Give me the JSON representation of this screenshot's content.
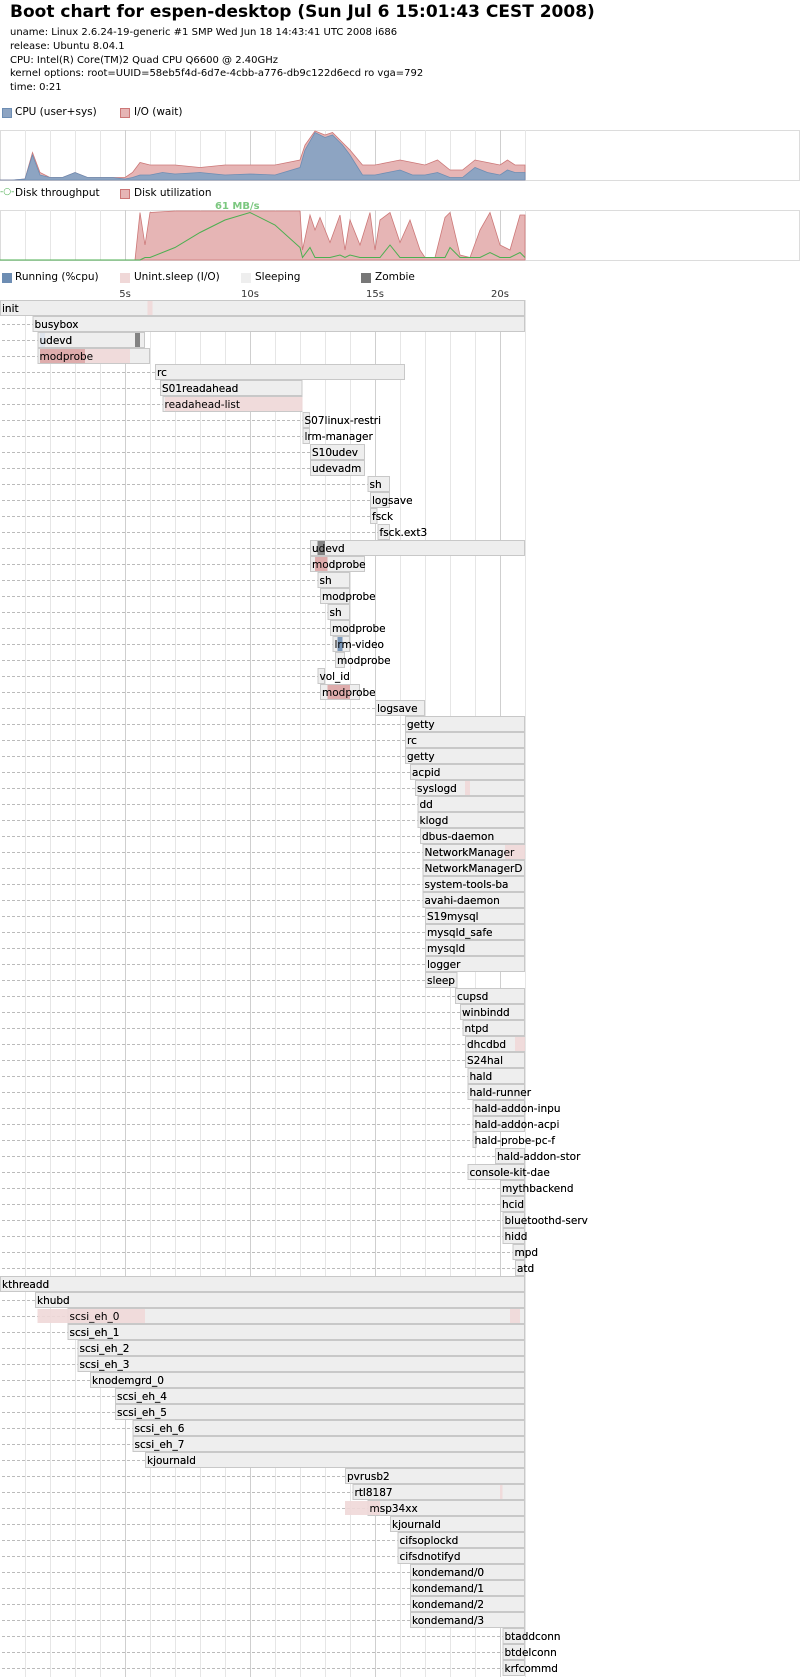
{
  "header": {
    "title": "Boot chart for espen-desktop (Sun Jul 6 15:01:43 CEST 2008)",
    "uname": "uname: Linux 2.6.24-19-generic #1 SMP Wed Jun 18 14:43:41 UTC 2008 i686",
    "release": "release: Ubuntu 8.04.1",
    "cpu": "CPU: Intel(R) Core(TM)2 Quad CPU Q6600 @ 2.40GHz",
    "kernel": "kernel options: root=UUID=58eb5f4d-6d7e-4cbb-a776-db9c122d6ecd ro vga=792",
    "time": "time: 0:21"
  },
  "legends": {
    "cpu": [
      {
        "label": "CPU (user+sys)",
        "color": "#8da4c2"
      },
      {
        "label": "I/O (wait)",
        "color": "#e6b5b5"
      }
    ],
    "disk": [
      {
        "label": "Disk throughput",
        "color": "#4caf50",
        "icon": "line-marker-icon"
      },
      {
        "label": "Disk utilization",
        "color": "#e6b5b5"
      }
    ],
    "process": [
      {
        "label": "Running (%cpu)",
        "color": "#6d8db3"
      },
      {
        "label": "Unint.sleep (I/O)",
        "color": "#f0d8d8"
      },
      {
        "label": "Sleeping",
        "color": "#eeeeee"
      },
      {
        "label": "Zombie",
        "color": "#777777"
      }
    ]
  },
  "chart_data": {
    "type": "bootchart",
    "x_unit": "s",
    "x_range": [
      0,
      21
    ],
    "time_ticks": [
      "5s",
      "10s",
      "15s",
      "20s"
    ],
    "time_tick_values": [
      5,
      10,
      15,
      20
    ],
    "cpu_chart": {
      "x": [
        0,
        0.5,
        1,
        1.3,
        1.6,
        2,
        2.5,
        3,
        3.5,
        4,
        4.5,
        5,
        5.3,
        5.6,
        6,
        6.5,
        7,
        8,
        9,
        10,
        11,
        12,
        12.2,
        12.6,
        13,
        13.3,
        13.7,
        14,
        14.5,
        15,
        15.5,
        16,
        16.5,
        17,
        17.5,
        18,
        18.5,
        19,
        19.5,
        20,
        20.3,
        20.6,
        21
      ],
      "cpu": [
        0,
        0,
        0.02,
        0.5,
        0.1,
        0.05,
        0.05,
        0.15,
        0.05,
        0.05,
        0.05,
        0.02,
        0.05,
        0.1,
        0.1,
        0.15,
        0.12,
        0.15,
        0.1,
        0.12,
        0.1,
        0.25,
        0.6,
        0.95,
        0.85,
        0.9,
        0.7,
        0.5,
        0.1,
        0.1,
        0.15,
        0.2,
        0.1,
        0.1,
        0.15,
        0.05,
        0.05,
        0.25,
        0.15,
        0.1,
        0.2,
        0.15,
        0.15
      ],
      "io": [
        0,
        0,
        0.02,
        0.55,
        0.15,
        0.05,
        0.05,
        0.15,
        0.05,
        0.05,
        0.05,
        0.05,
        0.15,
        0.35,
        0.3,
        0.3,
        0.3,
        0.25,
        0.3,
        0.3,
        0.3,
        0.4,
        0.7,
        0.98,
        0.9,
        0.95,
        0.75,
        0.6,
        0.3,
        0.3,
        0.35,
        0.4,
        0.35,
        0.3,
        0.4,
        0.2,
        0.2,
        0.4,
        0.35,
        0.3,
        0.4,
        0.3,
        0.3
      ]
    },
    "disk_chart": {
      "max_label": "61 MB/s",
      "x": [
        0,
        1.4,
        5.4,
        5.6,
        5.8,
        6,
        7,
        8,
        9,
        10,
        11,
        12,
        12.1,
        12.4,
        12.6,
        12.8,
        13.2,
        13.6,
        13.8,
        14,
        14.4,
        14.8,
        15,
        15.2,
        15.6,
        16,
        16.4,
        16.8,
        17,
        17.4,
        17.8,
        18,
        18.4,
        18.8,
        19.2,
        19.6,
        20,
        20.4,
        20.8,
        21
      ],
      "util": [
        0,
        0,
        0,
        0.95,
        0.3,
        0.95,
        0.98,
        0.98,
        0.98,
        0.98,
        0.98,
        0.98,
        0.2,
        0.9,
        0.6,
        0.85,
        0.35,
        0.9,
        0.2,
        0.8,
        0.3,
        0.95,
        0.2,
        0.8,
        0.95,
        0.35,
        0.8,
        0.2,
        0.05,
        0.05,
        0.85,
        0.95,
        0.1,
        0.05,
        0.6,
        0.95,
        0.3,
        0.2,
        0.9,
        0.9
      ],
      "throughput": [
        0,
        0,
        0,
        0,
        0.05,
        0.05,
        0.25,
        0.55,
        0.8,
        0.95,
        0.7,
        0.25,
        0.05,
        0.25,
        0.05,
        0.05,
        0.05,
        0.1,
        0.05,
        0.1,
        0.05,
        0.05,
        0.05,
        0.05,
        0.3,
        0.05,
        0.05,
        0.05,
        0.05,
        0.05,
        0.05,
        0.25,
        0.05,
        0.05,
        0.05,
        0.15,
        0.05,
        0.05,
        0.15,
        0.05
      ]
    },
    "processes": [
      {
        "name": "init",
        "start": 0,
        "end": 21
      },
      {
        "name": "busybox",
        "start": 1.3,
        "end": 21
      },
      {
        "name": "udevd",
        "start": 1.5,
        "end": 5.8
      },
      {
        "name": "modprobe",
        "start": 1.5,
        "end": 6
      },
      {
        "name": "rc",
        "start": 6.2,
        "end": 16.2
      },
      {
        "name": "S01readahead",
        "start": 6.4,
        "end": 12.1
      },
      {
        "name": "readahead-list",
        "start": 6.5,
        "end": 12.1
      },
      {
        "name": "S07linux-restri",
        "start": 12.1,
        "end": 12.4
      },
      {
        "name": "lrm-manager",
        "start": 12.1,
        "end": 12.4
      },
      {
        "name": "S10udev",
        "start": 12.4,
        "end": 14.6
      },
      {
        "name": "udevadm",
        "start": 12.4,
        "end": 14.6
      },
      {
        "name": "sh",
        "start": 14.7,
        "end": 15.6
      },
      {
        "name": "logsave",
        "start": 14.8,
        "end": 15.6
      },
      {
        "name": "fsck",
        "start": 14.8,
        "end": 15.1
      },
      {
        "name": "fsck.ext3",
        "start": 15.1,
        "end": 15.6
      },
      {
        "name": "udevd",
        "start": 12.4,
        "end": 21
      },
      {
        "name": "modprobe",
        "start": 12.4,
        "end": 14.6
      },
      {
        "name": "sh",
        "start": 12.7,
        "end": 14
      },
      {
        "name": "modprobe",
        "start": 12.8,
        "end": 14
      },
      {
        "name": "sh",
        "start": 13.1,
        "end": 14
      },
      {
        "name": "modprobe",
        "start": 13.2,
        "end": 14
      },
      {
        "name": "lrm-video",
        "start": 13.3,
        "end": 14
      },
      {
        "name": "modprobe",
        "start": 13.4,
        "end": 13.8
      },
      {
        "name": "vol_id",
        "start": 12.7,
        "end": 13
      },
      {
        "name": "modprobe",
        "start": 12.8,
        "end": 14.4
      },
      {
        "name": "logsave",
        "start": 15,
        "end": 17
      },
      {
        "name": "getty",
        "start": 16.2,
        "end": 21
      },
      {
        "name": "rc",
        "start": 16.2,
        "end": 21
      },
      {
        "name": "getty",
        "start": 16.2,
        "end": 21
      },
      {
        "name": "acpid",
        "start": 16.4,
        "end": 21
      },
      {
        "name": "syslogd",
        "start": 16.6,
        "end": 21
      },
      {
        "name": "dd",
        "start": 16.7,
        "end": 21
      },
      {
        "name": "klogd",
        "start": 16.7,
        "end": 21
      },
      {
        "name": "dbus-daemon",
        "start": 16.8,
        "end": 21
      },
      {
        "name": "NetworkManager",
        "start": 16.9,
        "end": 21
      },
      {
        "name": "NetworkManagerD",
        "start": 16.9,
        "end": 21
      },
      {
        "name": "system-tools-ba",
        "start": 16.9,
        "end": 21
      },
      {
        "name": "avahi-daemon",
        "start": 16.9,
        "end": 21
      },
      {
        "name": "S19mysql",
        "start": 17,
        "end": 21
      },
      {
        "name": "mysqld_safe",
        "start": 17,
        "end": 21
      },
      {
        "name": "mysqld",
        "start": 17,
        "end": 21
      },
      {
        "name": "logger",
        "start": 17,
        "end": 21
      },
      {
        "name": "sleep",
        "start": 17,
        "end": 18.3
      },
      {
        "name": "cupsd",
        "start": 18.2,
        "end": 21
      },
      {
        "name": "winbindd",
        "start": 18.4,
        "end": 21
      },
      {
        "name": "ntpd",
        "start": 18.5,
        "end": 21
      },
      {
        "name": "dhcdbd",
        "start": 18.6,
        "end": 21
      },
      {
        "name": "S24hal",
        "start": 18.6,
        "end": 21
      },
      {
        "name": "hald",
        "start": 18.7,
        "end": 21
      },
      {
        "name": "hald-runner",
        "start": 18.7,
        "end": 21
      },
      {
        "name": "hald-addon-inpu",
        "start": 18.9,
        "end": 21
      },
      {
        "name": "hald-addon-acpi",
        "start": 18.9,
        "end": 21
      },
      {
        "name": "hald-probe-pc-f",
        "start": 18.9,
        "end": 19
      },
      {
        "name": "hald-addon-stor",
        "start": 19.8,
        "end": 21
      },
      {
        "name": "console-kit-dae",
        "start": 18.7,
        "end": 21
      },
      {
        "name": "mythbackend",
        "start": 20,
        "end": 21
      },
      {
        "name": "hcid",
        "start": 20,
        "end": 21
      },
      {
        "name": "bluetoothd-serv",
        "start": 20.1,
        "end": 21
      },
      {
        "name": "hidd",
        "start": 20.1,
        "end": 21
      },
      {
        "name": "mpd",
        "start": 20.5,
        "end": 21
      },
      {
        "name": "atd",
        "start": 20.6,
        "end": 21
      },
      {
        "name": "kthreadd",
        "start": 0,
        "end": 21
      },
      {
        "name": "khubd",
        "start": 1.4,
        "end": 21
      },
      {
        "name": "scsi_eh_0",
        "start": 2.7,
        "end": 21
      },
      {
        "name": "scsi_eh_1",
        "start": 2.7,
        "end": 21
      },
      {
        "name": "scsi_eh_2",
        "start": 3.1,
        "end": 21
      },
      {
        "name": "scsi_eh_3",
        "start": 3.1,
        "end": 21
      },
      {
        "name": "knodemgrd_0",
        "start": 3.6,
        "end": 21
      },
      {
        "name": "scsi_eh_4",
        "start": 4.6,
        "end": 21
      },
      {
        "name": "scsi_eh_5",
        "start": 4.6,
        "end": 21
      },
      {
        "name": "scsi_eh_6",
        "start": 5.3,
        "end": 21
      },
      {
        "name": "scsi_eh_7",
        "start": 5.3,
        "end": 21
      },
      {
        "name": "kjournald",
        "start": 5.8,
        "end": 21
      },
      {
        "name": "pvrusb2",
        "start": 13.8,
        "end": 21
      },
      {
        "name": "rtl8187",
        "start": 14.1,
        "end": 21
      },
      {
        "name": "msp34xx",
        "start": 14.7,
        "end": 21
      },
      {
        "name": "kjournald",
        "start": 15.6,
        "end": 21
      },
      {
        "name": "cifsoplockd",
        "start": 15.9,
        "end": 21
      },
      {
        "name": "cifsdnotifyd",
        "start": 15.9,
        "end": 21
      },
      {
        "name": "kondemand/0",
        "start": 16.4,
        "end": 21
      },
      {
        "name": "kondemand/1",
        "start": 16.4,
        "end": 21
      },
      {
        "name": "kondemand/2",
        "start": 16.4,
        "end": 21
      },
      {
        "name": "kondemand/3",
        "start": 16.4,
        "end": 21
      },
      {
        "name": "btaddconn",
        "start": 20.1,
        "end": 21
      },
      {
        "name": "btdelconn",
        "start": 20.1,
        "end": 21
      },
      {
        "name": "krfcommd",
        "start": 20.1,
        "end": 21
      }
    ]
  }
}
